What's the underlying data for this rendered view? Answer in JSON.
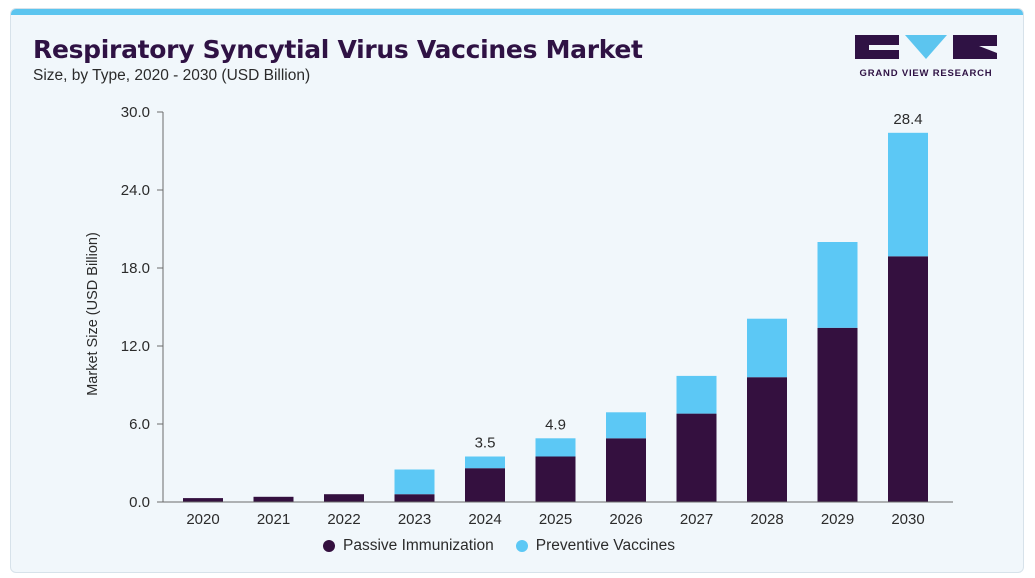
{
  "colors": {
    "passive": "#34103f",
    "preventive": "#5cc8f5",
    "accent": "#5cc5ef",
    "brand": "#2f1244"
  },
  "header": {
    "title": "Respiratory Syncytial Virus Vaccines Market",
    "subtitle": "Size, by Type, 2020 - 2030 (USD Billion)"
  },
  "logo": {
    "text": "GRAND VIEW RESEARCH"
  },
  "chart_data": {
    "type": "bar",
    "stacked": true,
    "title": "Respiratory Syncytial Virus Vaccines Market",
    "subtitle": "Size, by Type, 2020 - 2030 (USD Billion)",
    "xlabel": "",
    "ylabel": "Market Size (USD Billion)",
    "ylim": [
      0,
      30
    ],
    "yticks": [
      "0.0",
      "6.0",
      "12.0",
      "18.0",
      "24.0",
      "30.0"
    ],
    "ytick_values": [
      0,
      6,
      12,
      18,
      24,
      30
    ],
    "categories": [
      "2020",
      "2021",
      "2022",
      "2023",
      "2024",
      "2025",
      "2026",
      "2027",
      "2028",
      "2029",
      "2030"
    ],
    "series": [
      {
        "name": "Passive Immunization",
        "values": [
          0.3,
          0.4,
          0.6,
          0.6,
          2.6,
          3.5,
          4.9,
          6.8,
          9.6,
          13.4,
          18.9
        ]
      },
      {
        "name": "Preventive Vaccines",
        "values": [
          0.0,
          0.0,
          0.0,
          1.9,
          0.9,
          1.4,
          2.0,
          2.9,
          4.5,
          6.6,
          9.5
        ]
      }
    ],
    "data_labels": [
      {
        "category": "2024",
        "text": "3.5"
      },
      {
        "category": "2025",
        "text": "4.9"
      },
      {
        "category": "2030",
        "text": "28.4"
      }
    ],
    "grid": false,
    "legend_position": "bottom"
  }
}
